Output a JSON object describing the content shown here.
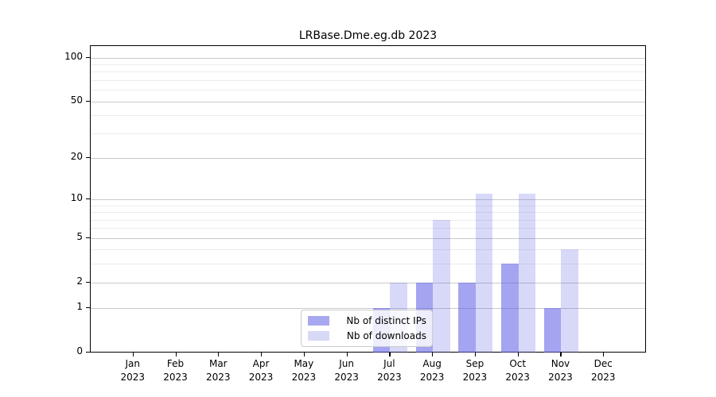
{
  "title": "LRBase.Dme.eg.db 2023",
  "legend": {
    "items": [
      {
        "label": "Nb of distinct IPs",
        "color": "#a8a8f0"
      },
      {
        "label": "Nb of downloads",
        "color": "#d8d8f7"
      }
    ]
  },
  "chart_data": {
    "type": "bar",
    "title": "LRBase.Dme.eg.db 2023",
    "categories": [
      "Jan",
      "Feb",
      "Mar",
      "Apr",
      "May",
      "Jun",
      "Jul",
      "Aug",
      "Sep",
      "Oct",
      "Nov",
      "Dec"
    ],
    "year_label": "2023",
    "series": [
      {
        "name": "Nb of distinct IPs",
        "values": [
          0,
          0,
          0,
          0,
          0,
          0,
          1,
          2,
          2,
          3,
          1,
          0
        ],
        "fill": "rgba(90,90,230,0.55)",
        "swatch": "#a8a8f0"
      },
      {
        "name": "Nb of downloads",
        "values": [
          0,
          0,
          0,
          0,
          0,
          0,
          2,
          7,
          11,
          11,
          4,
          0
        ],
        "fill": "rgba(90,90,230,0.24)",
        "swatch": "#d8d8f7"
      }
    ],
    "yscale": "log1p",
    "ylim": [
      0,
      120
    ],
    "yticks": [
      0,
      1,
      2,
      5,
      10,
      20,
      50,
      100
    ],
    "minor_yticks": [
      3,
      4,
      6,
      7,
      8,
      9,
      30,
      40,
      60,
      70,
      80,
      90
    ],
    "xlabel": "",
    "ylabel": "",
    "grid": true,
    "legend_position": "lower center"
  }
}
